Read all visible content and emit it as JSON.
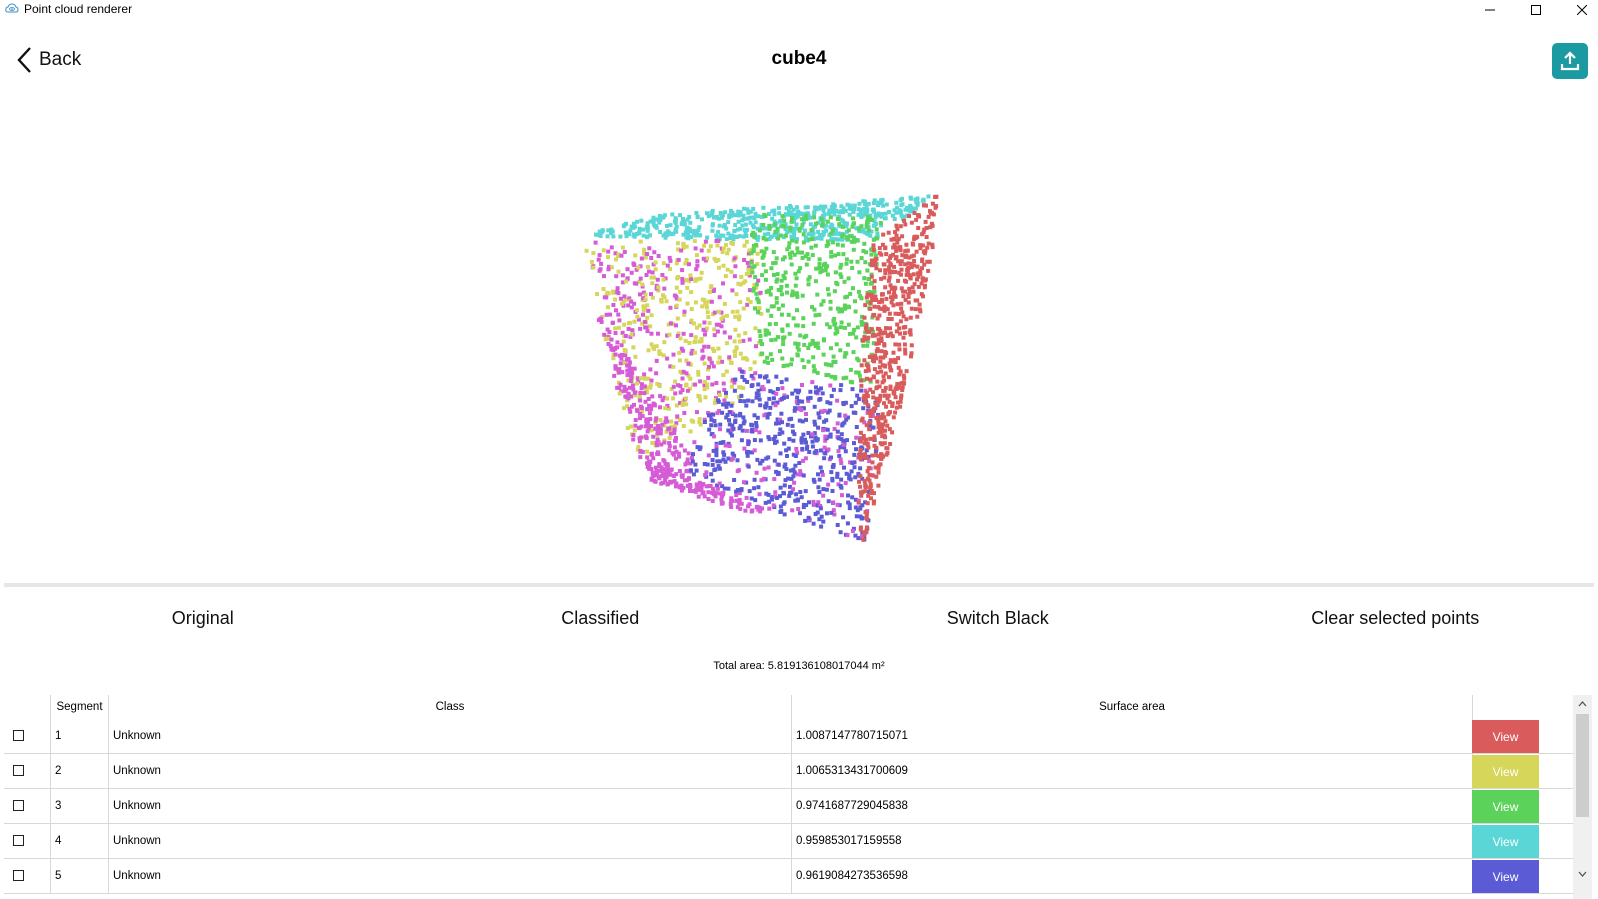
{
  "window": {
    "title": "Point cloud renderer",
    "icon": "cloud-eye-icon"
  },
  "header": {
    "back_label": "Back",
    "title": "cube4",
    "upload_icon": "upload-icon"
  },
  "modes": [
    "Original",
    "Classified",
    "Switch Black",
    "Clear selected points"
  ],
  "summary": {
    "total_area": "Total area: 5.819136108017044 m²"
  },
  "table": {
    "columns": [
      "Segment",
      "Class",
      "Surface area",
      ""
    ],
    "rows": [
      {
        "segment": "1",
        "class": "Unknown",
        "area": "1.0087147780715071",
        "action": "View",
        "color": "#d95b5b"
      },
      {
        "segment": "2",
        "class": "Unknown",
        "area": "1.0065313431700609",
        "action": "View",
        "color": "#d6d65a"
      },
      {
        "segment": "3",
        "class": "Unknown",
        "area": "0.9741687729045838",
        "action": "View",
        "color": "#5bd35b"
      },
      {
        "segment": "4",
        "class": "Unknown",
        "area": "0.959853017159558",
        "action": "View",
        "color": "#5bd6d6"
      },
      {
        "segment": "5",
        "class": "Unknown",
        "area": "0.9619084273536598",
        "action": "View",
        "color": "#5b5bd6"
      }
    ]
  },
  "colors": {
    "accent": "#1b9aa2",
    "magenta": "#d65bd6"
  }
}
